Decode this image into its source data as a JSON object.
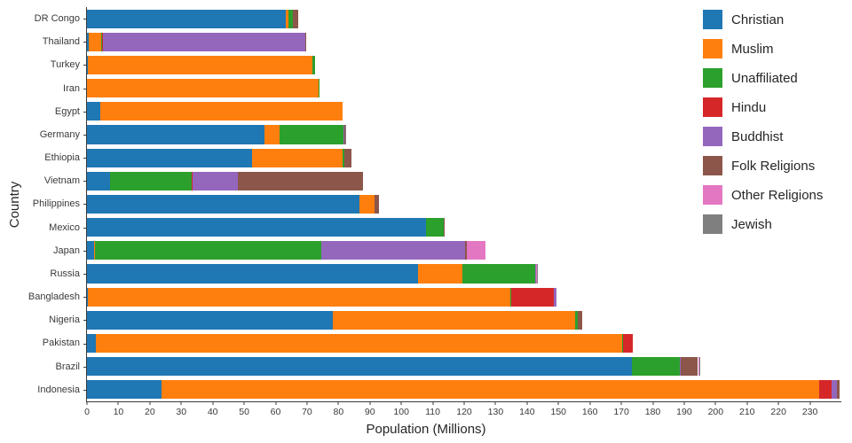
{
  "chart_data": {
    "type": "bar",
    "orientation": "horizontal",
    "stacked": true,
    "title": "",
    "xlabel": "Population (Millions)",
    "ylabel": "Country",
    "xlim": [
      0,
      240
    ],
    "grid": false,
    "legend_position": "top-right",
    "xticks": [
      0,
      10,
      20,
      30,
      40,
      50,
      60,
      70,
      80,
      90,
      100,
      110,
      120,
      130,
      140,
      150,
      160,
      170,
      180,
      190,
      200,
      210,
      220,
      230
    ],
    "categories": [
      "DR Congo",
      "Thailand",
      "Turkey",
      "Iran",
      "Egypt",
      "Germany",
      "Ethiopia",
      "Vietnam",
      "Philippines",
      "Mexico",
      "Japan",
      "Russia",
      "Bangladesh",
      "Nigeria",
      "Pakistan",
      "Brazil",
      "Indonesia"
    ],
    "series": [
      {
        "name": "Christian",
        "color": "#1f77b4",
        "values": [
          63.2,
          0.6,
          0.3,
          0.1,
          4.3,
          56.5,
          52.6,
          7.2,
          86.8,
          107.8,
          2.3,
          105.2,
          0.3,
          78.1,
          2.8,
          173.3,
          23.7
        ]
      },
      {
        "name": "Muslim",
        "color": "#ff7f0e",
        "values": [
          1.0,
          4.0,
          71.3,
          73.6,
          76.9,
          4.8,
          28.7,
          0.2,
          4.7,
          0.1,
          0.2,
          14.3,
          134.4,
          77.3,
          167.4,
          0,
          209.1
        ]
      },
      {
        "name": "Unaffiliated",
        "color": "#2ca02c",
        "values": [
          1.2,
          0.3,
          0.9,
          0.2,
          0,
          20.4,
          0.5,
          26.0,
          0.1,
          5.7,
          72.1,
          23.2,
          0.4,
          0.8,
          0.2,
          15.4,
          0.2
        ]
      },
      {
        "name": "Hindu",
        "color": "#d62728",
        "values": [
          0,
          0.1,
          0,
          0,
          0,
          0,
          0,
          0.1,
          0,
          0,
          0,
          0,
          13.5,
          0,
          3.3,
          0,
          4.0
        ]
      },
      {
        "name": "Buddhist",
        "color": "#9467bd",
        "values": [
          0,
          64.4,
          0,
          0,
          0,
          0.3,
          0,
          14.4,
          0,
          0,
          45.8,
          0.2,
          0.8,
          0,
          0,
          0.2,
          1.7
        ]
      },
      {
        "name": "Folk Religions",
        "color": "#8c564b",
        "values": [
          1.8,
          0.1,
          0,
          0,
          0,
          0.1,
          2.3,
          39.8,
          1.4,
          0.1,
          0.4,
          0.1,
          0,
          1.4,
          0,
          5.5,
          0.7
        ]
      },
      {
        "name": "Other Religions",
        "color": "#e377c2",
        "values": [
          0,
          0,
          0,
          0,
          0,
          0.1,
          0,
          0,
          0,
          0,
          5.9,
          0.1,
          0,
          0,
          0,
          0.3,
          0
        ]
      },
      {
        "name": "Jewish",
        "color": "#7f7f7f",
        "values": [
          0,
          0,
          0,
          0,
          0,
          0.2,
          0,
          0,
          0,
          0,
          0,
          0.2,
          0,
          0,
          0,
          0.1,
          0
        ]
      }
    ]
  }
}
